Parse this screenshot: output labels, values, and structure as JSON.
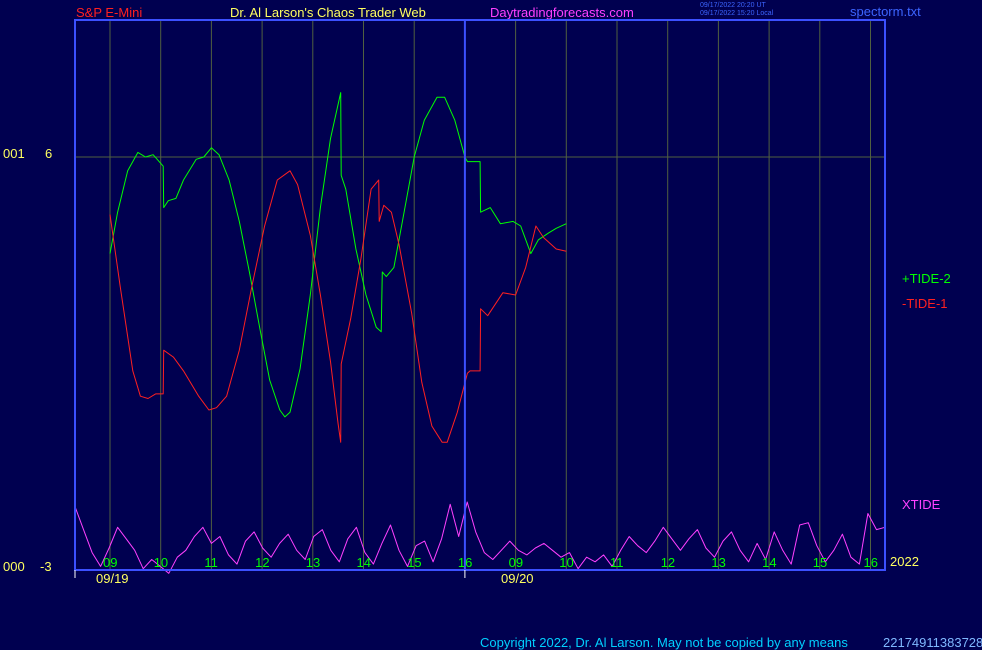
{
  "header": {
    "symbol": "S&P E-Mini",
    "site_title": "Dr. Al Larson's Chaos Trader Web",
    "site_url": "Daytradingforecasts.com",
    "stamp_ut": "09/17/2022 20:20 UT",
    "stamp_local": "09/17/2022 15:20 Local",
    "file_name": "spectorm.txt"
  },
  "colors": {
    "background": "#000050",
    "axis": "#3c50ff",
    "grid": "#506040",
    "tide2": "#00ff00",
    "tide1": "#ff2020",
    "xtide": "#ff40ff",
    "time_label": "#00ff00",
    "date_label": "#ffff60"
  },
  "left_axis": {
    "top_code": "001",
    "top_value": "6",
    "bottom_code": "000",
    "bottom_value": "-3"
  },
  "year_label": "2022",
  "footer": {
    "copyright": "Copyright 2022, Dr. Al Larson. May not be copied by any means",
    "overlay_code": "22174911383728"
  },
  "chart_data": {
    "type": "line",
    "xlabel": "",
    "ylabel": "",
    "ylim": [
      -3,
      9
    ],
    "grid": true,
    "legend_position": "right",
    "x_ticks": [
      "09",
      "10",
      "11",
      "12",
      "13",
      "14",
      "15",
      "16",
      "09",
      "10",
      "11",
      "12",
      "13",
      "14",
      "15",
      "16"
    ],
    "date_labels": [
      {
        "label": "09/19",
        "session": 1
      },
      {
        "label": "09/20",
        "session": 2
      }
    ],
    "series": [
      {
        "name": "+TIDE-2",
        "points": [
          [
            0,
            3.9
          ],
          [
            0.15,
            4.8
          ],
          [
            0.35,
            5.7
          ],
          [
            0.55,
            6.1
          ],
          [
            0.7,
            6.0
          ],
          [
            0.85,
            6.05
          ],
          [
            1.05,
            5.8
          ],
          [
            1.06,
            4.9
          ],
          [
            1.15,
            5.05
          ],
          [
            1.3,
            5.1
          ],
          [
            1.45,
            5.5
          ],
          [
            1.7,
            5.95
          ],
          [
            1.85,
            6.0
          ],
          [
            2.0,
            6.2
          ],
          [
            2.15,
            6.05
          ],
          [
            2.35,
            5.5
          ],
          [
            2.55,
            4.6
          ],
          [
            2.75,
            3.5
          ],
          [
            2.95,
            2.3
          ],
          [
            3.15,
            1.15
          ],
          [
            3.35,
            0.5
          ],
          [
            3.45,
            0.35
          ],
          [
            3.55,
            0.45
          ],
          [
            3.75,
            1.4
          ],
          [
            3.95,
            3.0
          ],
          [
            4.15,
            4.9
          ],
          [
            4.35,
            6.4
          ],
          [
            4.55,
            7.4
          ],
          [
            4.56,
            5.6
          ],
          [
            4.65,
            5.3
          ],
          [
            4.85,
            4.0
          ],
          [
            5.05,
            3.0
          ],
          [
            5.25,
            2.3
          ],
          [
            5.35,
            2.2
          ],
          [
            5.37,
            3.5
          ],
          [
            5.45,
            3.4
          ],
          [
            5.6,
            3.6
          ],
          [
            5.8,
            4.8
          ],
          [
            6.0,
            6.0
          ],
          [
            6.2,
            6.8
          ],
          [
            6.45,
            7.3
          ],
          [
            6.6,
            7.3
          ],
          [
            6.8,
            6.8
          ],
          [
            7.0,
            6.0
          ],
          [
            7.05,
            5.9
          ],
          [
            7.3,
            5.9
          ],
          [
            7.31,
            4.8
          ],
          [
            7.5,
            4.9
          ],
          [
            7.7,
            4.55
          ],
          [
            7.95,
            4.6
          ],
          [
            8.1,
            4.5
          ],
          [
            8.3,
            3.9
          ],
          [
            8.45,
            4.2
          ],
          [
            8.65,
            4.35
          ],
          [
            8.8,
            4.45
          ],
          [
            9.0,
            4.55
          ]
        ]
      },
      {
        "name": "-TIDE-1",
        "points": [
          [
            0,
            4.75
          ],
          [
            0.2,
            3.2
          ],
          [
            0.45,
            1.35
          ],
          [
            0.6,
            0.8
          ],
          [
            0.75,
            0.75
          ],
          [
            0.9,
            0.85
          ],
          [
            1.05,
            0.85
          ],
          [
            1.06,
            1.8
          ],
          [
            1.25,
            1.65
          ],
          [
            1.45,
            1.35
          ],
          [
            1.75,
            0.8
          ],
          [
            1.95,
            0.5
          ],
          [
            2.1,
            0.55
          ],
          [
            2.3,
            0.8
          ],
          [
            2.55,
            1.8
          ],
          [
            2.8,
            3.2
          ],
          [
            3.05,
            4.5
          ],
          [
            3.3,
            5.5
          ],
          [
            3.55,
            5.7
          ],
          [
            3.7,
            5.4
          ],
          [
            3.95,
            4.3
          ],
          [
            4.15,
            3.0
          ],
          [
            4.35,
            1.55
          ],
          [
            4.5,
            0.2
          ],
          [
            4.55,
            -0.2
          ],
          [
            4.56,
            1.5
          ],
          [
            4.75,
            2.5
          ],
          [
            4.95,
            3.8
          ],
          [
            5.15,
            5.3
          ],
          [
            5.3,
            5.5
          ],
          [
            5.31,
            4.6
          ],
          [
            5.4,
            4.95
          ],
          [
            5.55,
            4.8
          ],
          [
            5.7,
            4.1
          ],
          [
            5.95,
            2.6
          ],
          [
            6.15,
            1.1
          ],
          [
            6.35,
            0.15
          ],
          [
            6.55,
            -0.2
          ],
          [
            6.65,
            -0.2
          ],
          [
            6.85,
            0.45
          ],
          [
            7.05,
            1.3
          ],
          [
            7.1,
            1.35
          ],
          [
            7.3,
            1.35
          ],
          [
            7.31,
            2.7
          ],
          [
            7.45,
            2.55
          ],
          [
            7.6,
            2.8
          ],
          [
            7.75,
            3.05
          ],
          [
            8.0,
            3.0
          ],
          [
            8.2,
            3.6
          ],
          [
            8.4,
            4.5
          ],
          [
            8.55,
            4.25
          ],
          [
            8.8,
            4.0
          ],
          [
            9.0,
            3.95
          ]
        ]
      },
      {
        "name": "XTIDE",
        "values": [
          -1.6,
          -2.1,
          -2.6,
          -2.9,
          -2.5,
          -2.05,
          -2.3,
          -2.55,
          -2.95,
          -2.75,
          -2.9,
          -3.05,
          -2.7,
          -2.55,
          -2.25,
          -2.05,
          -2.4,
          -2.25,
          -2.65,
          -2.85,
          -2.35,
          -2.15,
          -2.5,
          -2.7,
          -2.4,
          -2.2,
          -2.55,
          -2.75,
          -2.25,
          -2.1,
          -2.55,
          -2.8,
          -2.3,
          -2.05,
          -2.6,
          -2.85,
          -2.4,
          -2.0,
          -2.55,
          -2.9,
          -2.45,
          -2.35,
          -2.8,
          -2.3,
          -1.55,
          -2.25,
          -1.5,
          -2.15,
          -2.6,
          -2.75,
          -2.55,
          -2.35,
          -2.55,
          -2.65,
          -2.5,
          -2.4,
          -2.55,
          -2.7,
          -2.6,
          -2.95,
          -2.7,
          -2.8,
          -2.65,
          -2.9,
          -2.55,
          -2.25,
          -2.45,
          -2.6,
          -2.35,
          -2.05,
          -2.3,
          -2.55,
          -2.3,
          -2.1,
          -2.5,
          -2.7,
          -2.35,
          -2.15,
          -2.55,
          -2.8,
          -2.4,
          -2.75,
          -2.15,
          -2.55,
          -2.85,
          -2.0,
          -1.95,
          -2.45,
          -2.8,
          -2.55,
          -2.2,
          -2.7,
          -2.85,
          -1.75,
          -2.1,
          -2.05
        ]
      }
    ]
  }
}
